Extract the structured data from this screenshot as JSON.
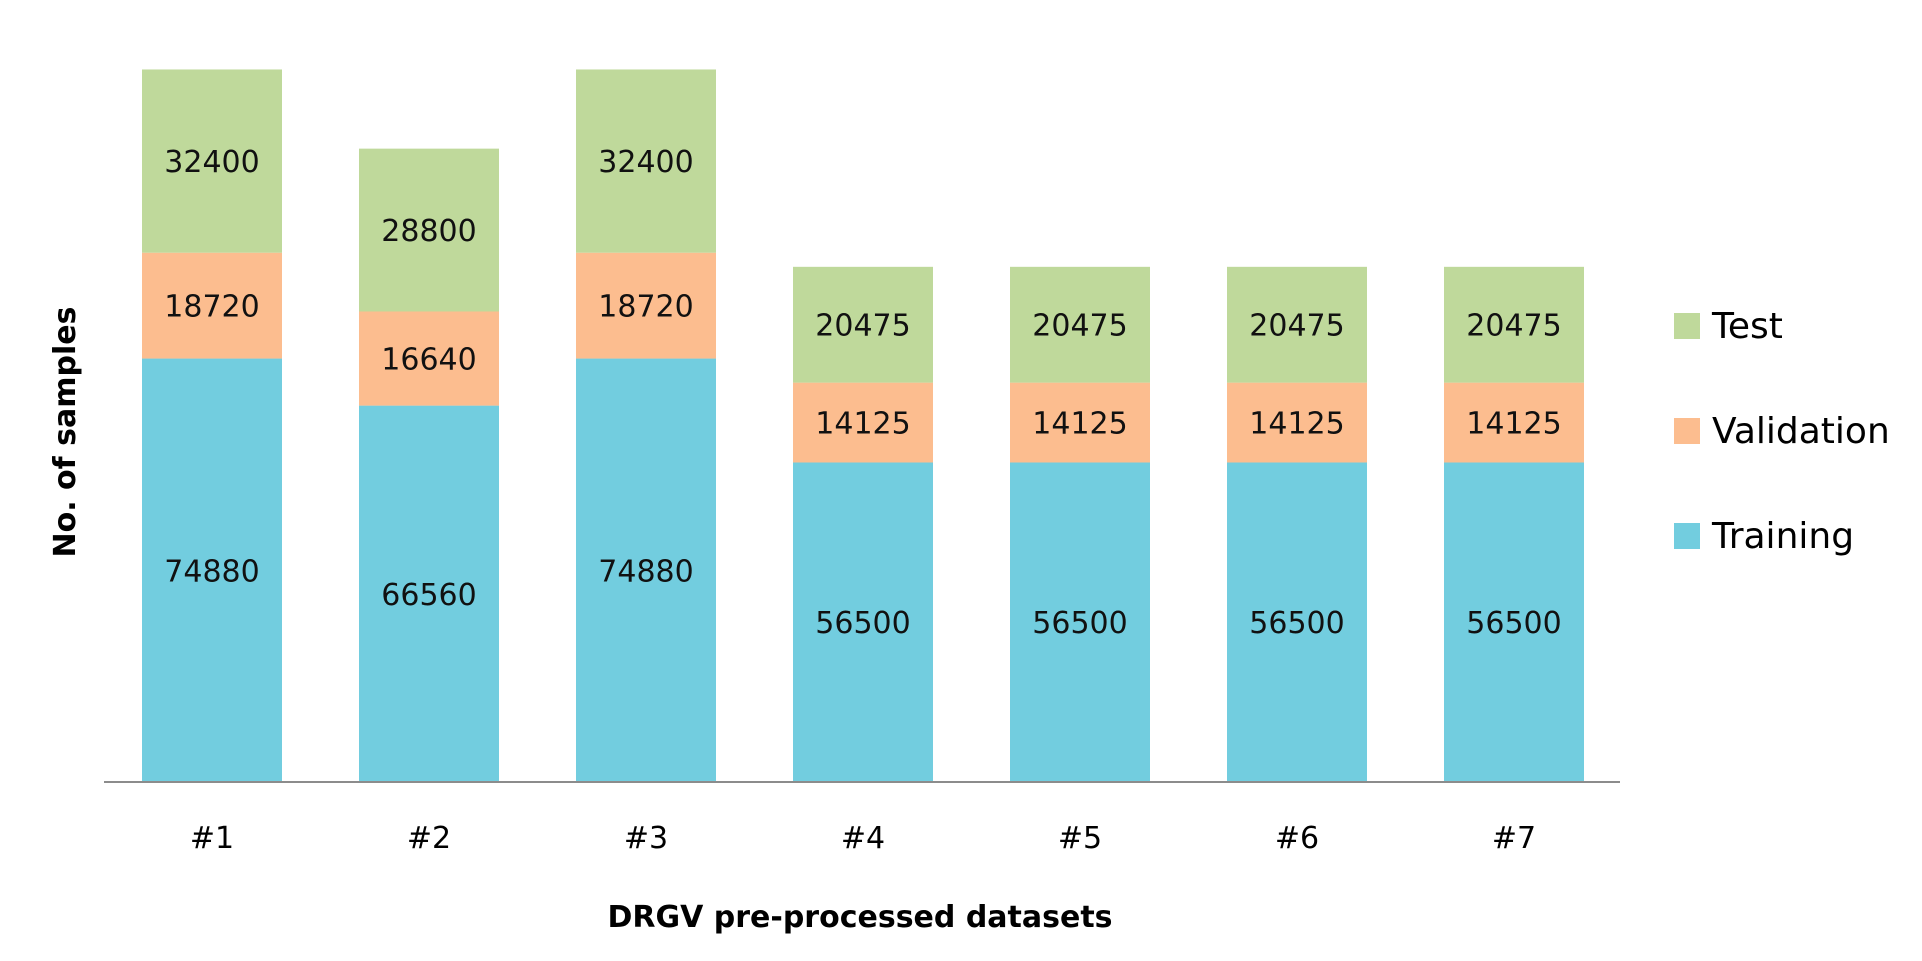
{
  "chart_data": {
    "type": "bar",
    "stacked": true,
    "title": "",
    "xlabel": "DRGV pre-processed datasets",
    "ylabel": "No. of samples",
    "categories": [
      "#1",
      "#2",
      "#3",
      "#4",
      "#5",
      "#6",
      "#7"
    ],
    "series": [
      {
        "name": "Training",
        "color": "#72CDDF",
        "values": [
          74880,
          66560,
          74880,
          56500,
          56500,
          56500,
          56500
        ]
      },
      {
        "name": "Validation",
        "color": "#FCBD8F",
        "values": [
          18720,
          16640,
          18720,
          14125,
          14125,
          14125,
          14125
        ]
      },
      {
        "name": "Test",
        "color": "#BFD99B",
        "values": [
          32400,
          28800,
          32400,
          20475,
          20475,
          20475,
          20475
        ]
      }
    ],
    "legend": {
      "position": "right",
      "order": [
        "Test",
        "Validation",
        "Training"
      ]
    },
    "data_labels": true,
    "y_axis_visible": false,
    "grid": false
  }
}
